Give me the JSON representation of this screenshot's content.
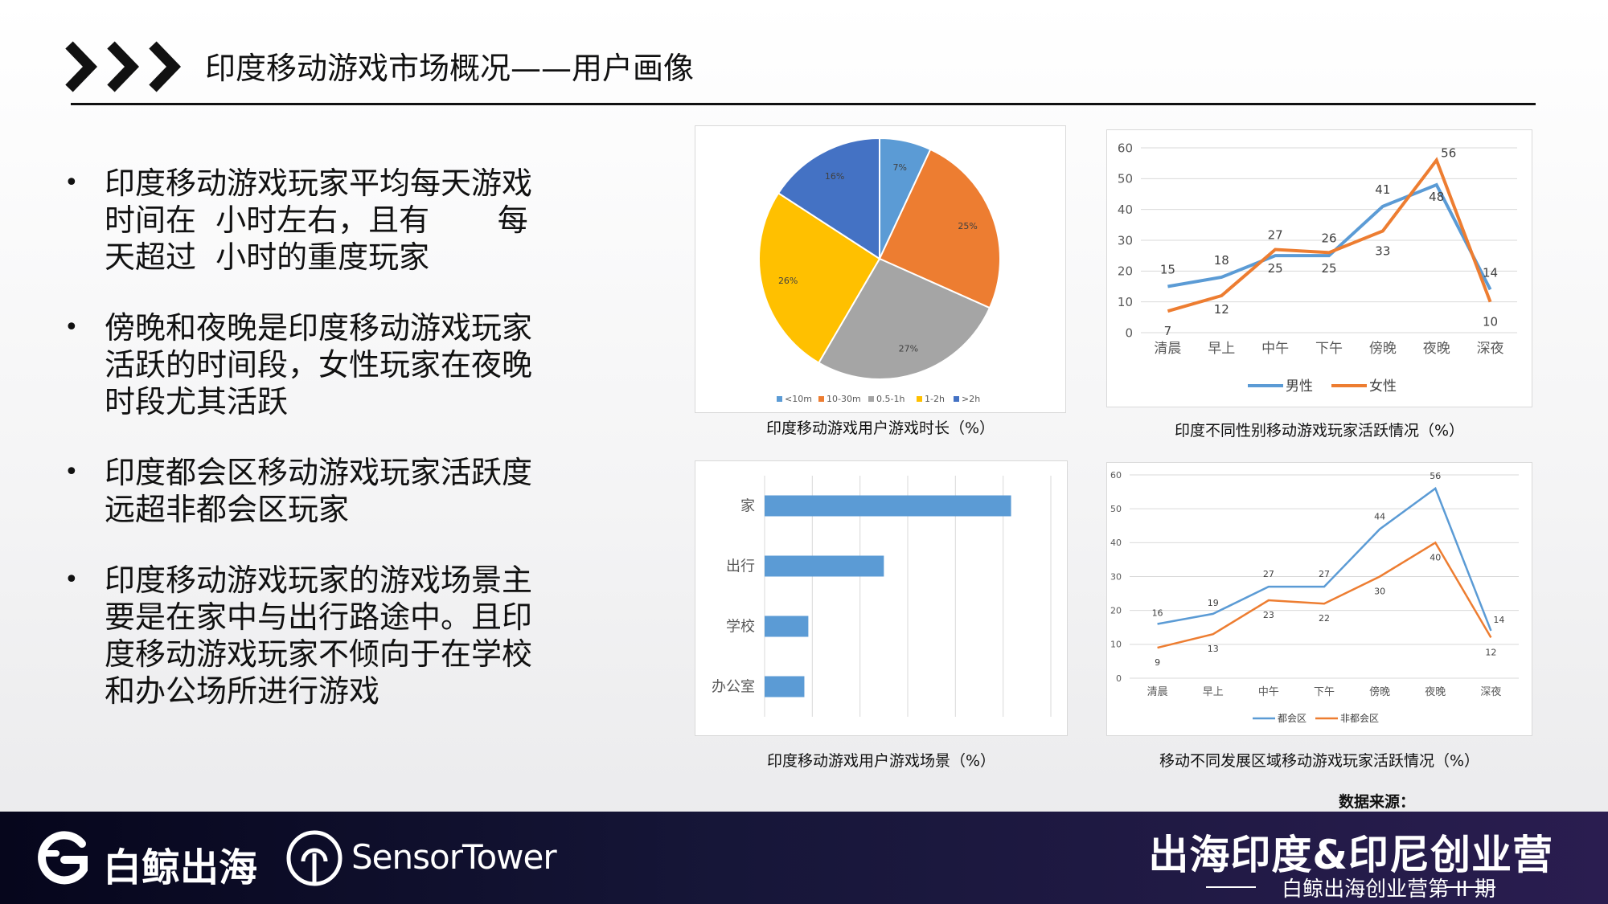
{
  "header": {
    "title": "印度移动游戏市场概况——用户画像"
  },
  "bullets": [
    {
      "line1": "印度移动游戏玩家平均每天游戏",
      "line2": "时间在  小时左右，且有       每",
      "line3": "天超过  小时的重度玩家"
    },
    {
      "line1": "傍晚和夜晚是印度移动游戏玩家",
      "line2": "活跃的时间段，女性玩家在夜晚",
      "line3": "时段尤其活跃"
    },
    {
      "line1": "印度都会区移动游戏玩家活跃度",
      "line2": "远超非都会区玩家"
    },
    {
      "line1": "印度移动游戏玩家的游戏场景主",
      "line2": "要是在家中与出行路途中。且印",
      "line3": "度移动游戏玩家不倾向于在学校",
      "line4": "和办公场所进行游戏"
    }
  ],
  "captions": {
    "pie": "印度移动游戏用户游戏时长（%）",
    "gender": "印度不同性别移动游戏玩家活跃情况（%）",
    "scene": "印度移动游戏用户游戏场景（%）",
    "region": "移动不同发展区域移动游戏玩家活跃情况（%）"
  },
  "source_label": "数据来源：",
  "footer": {
    "logo_a": "白鲸出海",
    "logo_b": "SensorTower",
    "camp_title": "出海印度&印尼创业营",
    "camp_sub": "白鲸出海创业营第 II 期"
  },
  "chart_data": [
    {
      "type": "pie",
      "categories": [
        "<10m",
        "10-30m",
        "0.5-1h",
        "1-2h",
        ">2h"
      ],
      "values": [
        7,
        25,
        27,
        26,
        16
      ],
      "labels": [
        "7%",
        "25%",
        "27%",
        "26%",
        "16%"
      ],
      "colors": [
        "#5b9bd5",
        "#ed7d31",
        "#a5a5a5",
        "#ffc000",
        "#4472c4"
      ],
      "legend": "bottom"
    },
    {
      "type": "line",
      "categories": [
        "清晨",
        "早上",
        "中午",
        "下午",
        "傍晚",
        "夜晚",
        "深夜"
      ],
      "series": [
        {
          "name": "男性",
          "values": [
            15,
            18,
            25,
            25,
            41,
            48,
            14
          ],
          "color": "#5b9bd5"
        },
        {
          "name": "女性",
          "values": [
            7,
            12,
            27,
            26,
            33,
            56,
            10
          ],
          "color": "#ed7d31"
        }
      ],
      "ylim": [
        0,
        60
      ],
      "yticks": [
        0,
        10,
        20,
        30,
        40,
        50,
        60
      ],
      "grid": true,
      "legend": "bottom"
    },
    {
      "type": "bar",
      "orientation": "horizontal",
      "categories": [
        "家",
        "出行",
        "学校",
        "办公室"
      ],
      "values": [
        62,
        30,
        11,
        10
      ],
      "xlim": [
        0,
        72
      ],
      "color": "#5b9bd5",
      "grid": true
    },
    {
      "type": "line",
      "categories": [
        "清晨",
        "早上",
        "中午",
        "下午",
        "傍晚",
        "夜晚",
        "深夜"
      ],
      "series": [
        {
          "name": "都会区",
          "values": [
            16,
            19,
            27,
            27,
            44,
            56,
            14
          ],
          "color": "#5b9bd5"
        },
        {
          "name": "非都会区",
          "values": [
            9,
            13,
            23,
            22,
            30,
            40,
            12
          ],
          "color": "#ed7d31"
        }
      ],
      "ylim": [
        0,
        60
      ],
      "yticks": [
        0,
        10,
        20,
        30,
        40,
        50,
        60
      ],
      "grid": true,
      "legend": "bottom"
    }
  ]
}
